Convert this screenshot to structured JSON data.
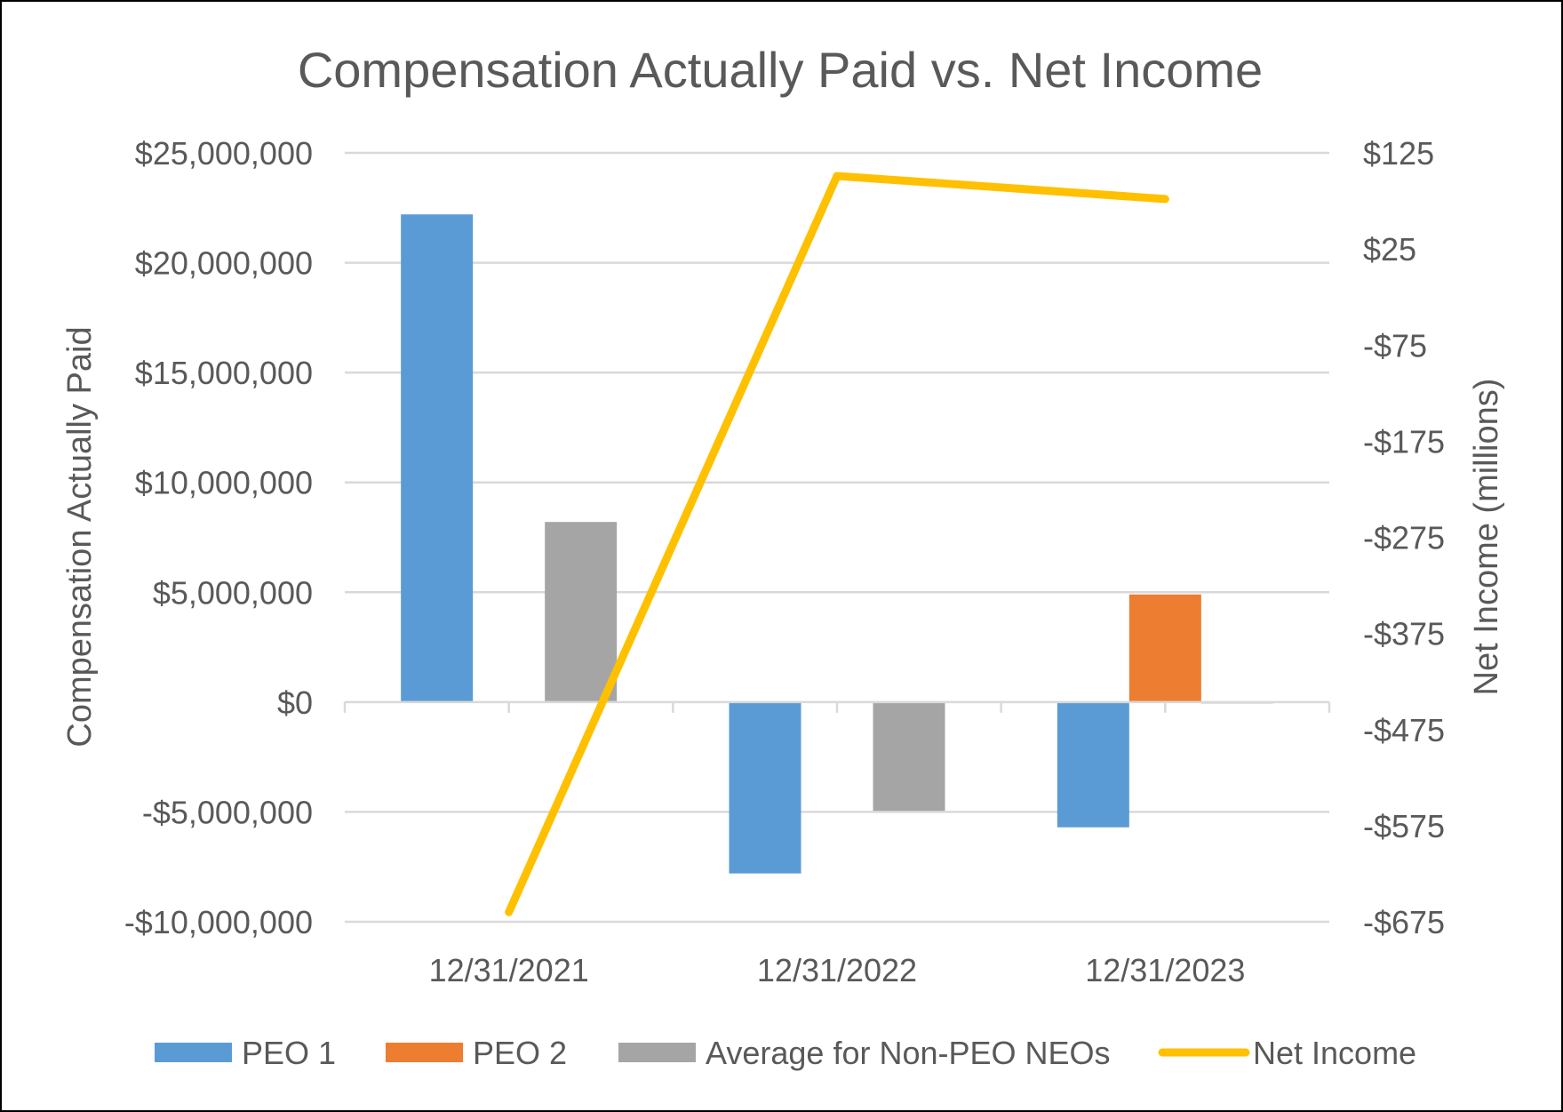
{
  "chart_data": {
    "type": "bar",
    "title": "Compensation Actually Paid vs. Net Income",
    "categories": [
      "12/31/2021",
      "12/31/2022",
      "12/31/2023"
    ],
    "y_left": {
      "label": "Compensation Actually Paid",
      "range": [
        -10000000,
        25000000
      ],
      "ticks": [
        25000000,
        20000000,
        15000000,
        10000000,
        5000000,
        0,
        -5000000,
        -10000000
      ],
      "tick_labels": [
        "$25,000,000",
        "$20,000,000",
        "$15,000,000",
        "$10,000,000",
        "$5,000,000",
        "$0",
        "-$5,000,000",
        "-$10,000,000"
      ]
    },
    "y_right": {
      "label": "Net Income (millions)",
      "range": [
        -675,
        125
      ],
      "ticks": [
        125,
        25,
        -75,
        -175,
        -275,
        -375,
        -475,
        -575,
        -675
      ],
      "tick_labels": [
        "$125",
        "$25",
        "-$75",
        "-$175",
        "-$275",
        "-$375",
        "-$475",
        "-$575",
        "-$675"
      ]
    },
    "series": [
      {
        "name": "PEO 1",
        "kind": "bar",
        "axis": "left",
        "color": "#5B9BD5",
        "values": [
          22200000,
          -7800000,
          -5700000
        ]
      },
      {
        "name": "PEO 2",
        "kind": "bar",
        "axis": "left",
        "color": "#ED7D31",
        "values": [
          null,
          null,
          4900000
        ]
      },
      {
        "name": "Average for Non-PEO NEOs",
        "kind": "bar",
        "axis": "left",
        "color": "#A5A5A5",
        "values": [
          8200000,
          -4950000,
          -50000
        ]
      },
      {
        "name": "Net Income",
        "kind": "line",
        "axis": "right",
        "color": "#FFC000",
        "values": [
          -665,
          101,
          77
        ]
      }
    ],
    "grid": true,
    "legend_position": "bottom"
  }
}
